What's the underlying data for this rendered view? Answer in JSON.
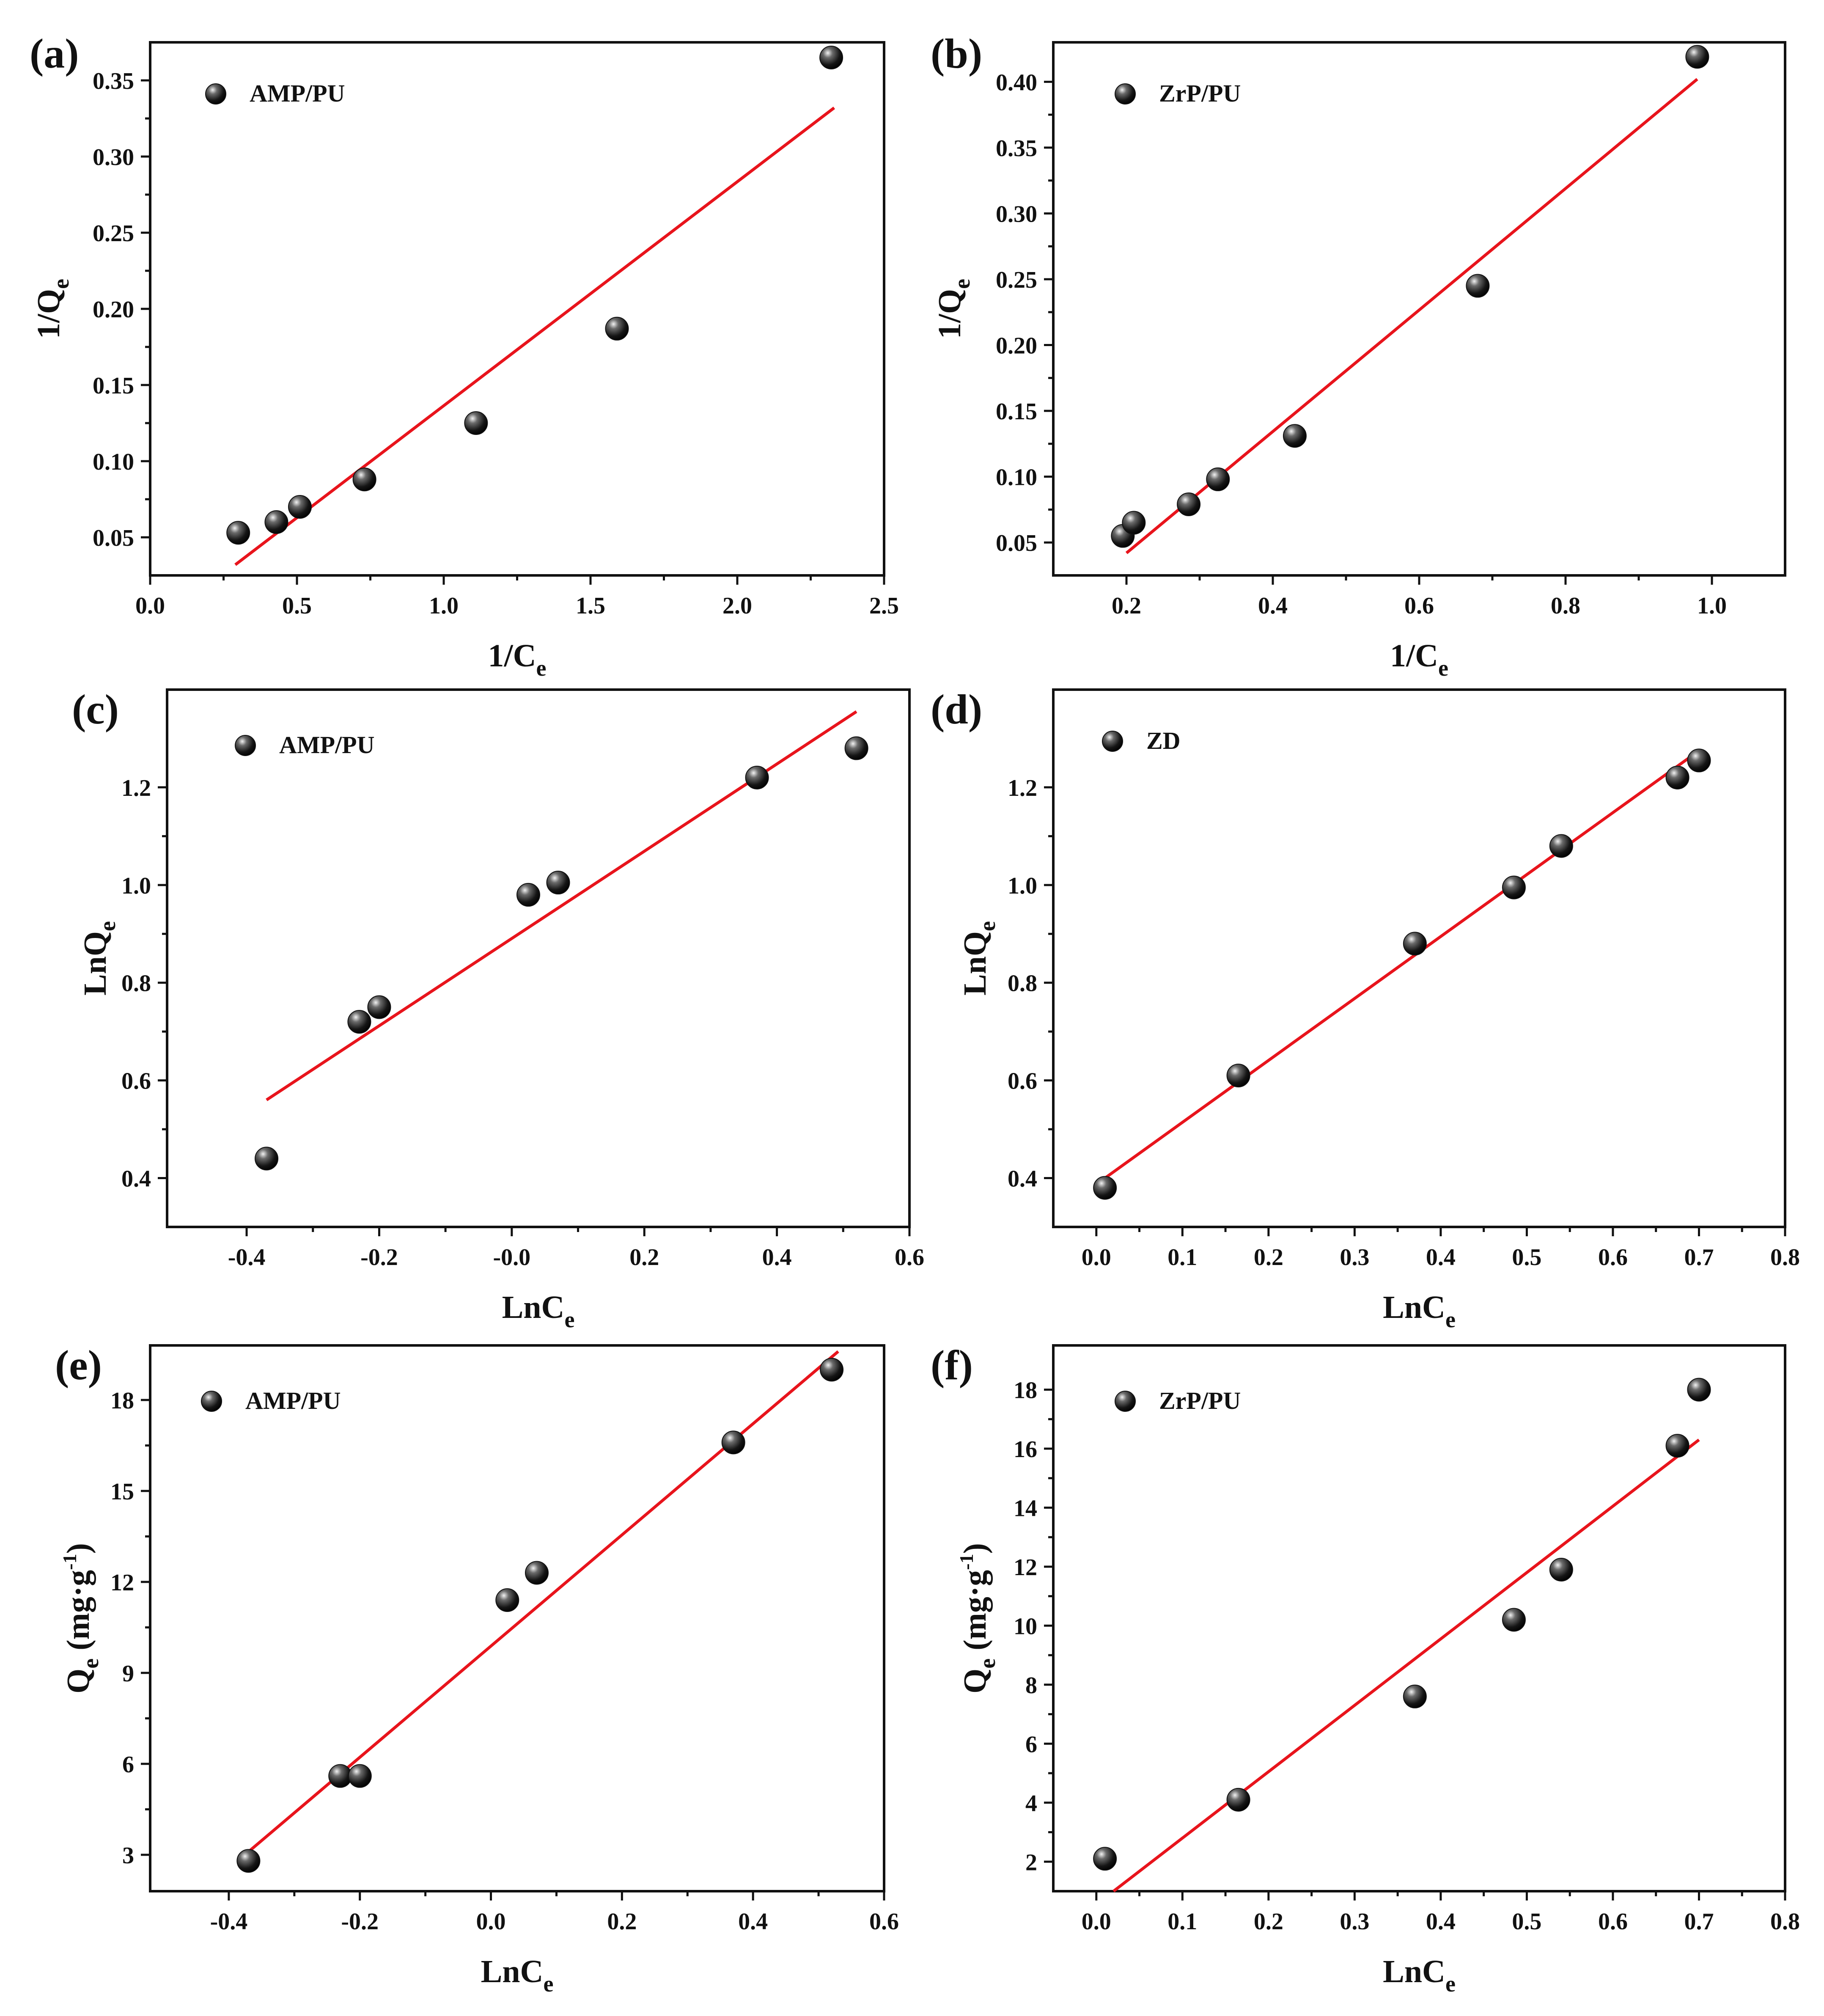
{
  "figure": {
    "colors": {
      "fit_line": "#e8141c",
      "marker_dark": "#111111",
      "marker_light": "#f2f2f2",
      "axis": "#111111"
    }
  },
  "chart_data": [
    {
      "id": "a",
      "type": "scatter",
      "panel_label": "(a)",
      "legend": "AMP/PU",
      "legend_position": "top-left",
      "xlabel": "1/C",
      "xlabel_sub": "e",
      "xlabel_sup": "",
      "ylabel": "1/Q",
      "ylabel_sub": "e",
      "ylabel_sup": "",
      "ylabel_suffix": "",
      "xlim": [
        0.0,
        2.5
      ],
      "ylim": [
        0.025,
        0.375
      ],
      "xticks": [
        0.0,
        0.5,
        1.0,
        1.5,
        2.0,
        2.5
      ],
      "xtick_labels": [
        "0.0",
        "0.5",
        "1.0",
        "1.5",
        "2.0",
        "2.5"
      ],
      "yticks": [
        0.05,
        0.1,
        0.15,
        0.2,
        0.25,
        0.3,
        0.35
      ],
      "ytick_labels": [
        "0.05",
        "0.10",
        "0.15",
        "0.20",
        "0.25",
        "0.30",
        "0.35"
      ],
      "x": [
        0.3,
        0.43,
        0.51,
        0.73,
        1.11,
        1.59,
        2.32
      ],
      "y": [
        0.053,
        0.06,
        0.07,
        0.088,
        0.125,
        0.187,
        0.365
      ],
      "fit": {
        "x": [
          0.29,
          2.33
        ],
        "y": [
          0.032,
          0.332
        ]
      }
    },
    {
      "id": "b",
      "type": "scatter",
      "panel_label": "(b)",
      "legend": "ZrP/PU",
      "legend_position": "top-left",
      "xlabel": "1/C",
      "xlabel_sub": "e",
      "xlabel_sup": "",
      "ylabel": "1/Q",
      "ylabel_sub": "e",
      "ylabel_sup": "",
      "ylabel_suffix": "",
      "xlim": [
        0.1,
        1.1
      ],
      "ylim": [
        0.025,
        0.43
      ],
      "xticks": [
        0.2,
        0.4,
        0.6,
        0.8,
        1.0
      ],
      "xtick_labels": [
        "0.2",
        "0.4",
        "0.6",
        "0.8",
        "1.0"
      ],
      "yticks": [
        0.05,
        0.1,
        0.15,
        0.2,
        0.25,
        0.3,
        0.35,
        0.4
      ],
      "ytick_labels": [
        "0.05",
        "0.10",
        "0.15",
        "0.20",
        "0.25",
        "0.30",
        "0.35",
        "0.40"
      ],
      "x": [
        0.195,
        0.21,
        0.285,
        0.325,
        0.43,
        0.68,
        0.98
      ],
      "y": [
        0.055,
        0.065,
        0.079,
        0.098,
        0.131,
        0.245,
        0.419
      ],
      "fit": {
        "x": [
          0.2,
          0.98
        ],
        "y": [
          0.042,
          0.402
        ]
      }
    },
    {
      "id": "c",
      "type": "scatter",
      "panel_label": "(c)",
      "legend": "AMP/PU",
      "legend_position": "top-left",
      "xlabel": "LnC",
      "xlabel_sub": "e",
      "xlabel_sup": "",
      "ylabel": "LnQ",
      "ylabel_sub": "e",
      "ylabel_sup": "",
      "ylabel_suffix": "",
      "xlim": [
        -0.52,
        0.6
      ],
      "ylim": [
        0.3,
        1.4
      ],
      "xticks": [
        -0.4,
        -0.2,
        0.0,
        0.2,
        0.4,
        0.6
      ],
      "xtick_labels": [
        "-0.4",
        "-0.2",
        "-0.0",
        "0.2",
        "0.4",
        "0.6"
      ],
      "yticks": [
        0.4,
        0.6,
        0.8,
        1.0,
        1.2
      ],
      "ytick_labels": [
        "0.4",
        "0.6",
        "0.8",
        "1.0",
        "1.2"
      ],
      "x": [
        -0.37,
        -0.23,
        -0.2,
        0.025,
        0.07,
        0.37,
        0.52
      ],
      "y": [
        0.44,
        0.72,
        0.75,
        0.98,
        1.005,
        1.22,
        1.28
      ],
      "fit": {
        "x": [
          -0.37,
          0.52
        ],
        "y": [
          0.56,
          1.355
        ]
      }
    },
    {
      "id": "d",
      "type": "scatter",
      "panel_label": "(d)",
      "legend": "ZD",
      "legend_position": "top-left",
      "xlabel": "LnC",
      "xlabel_sub": "e",
      "xlabel_sup": "",
      "ylabel": "LnQ",
      "ylabel_sub": "e",
      "ylabel_sup": "",
      "ylabel_suffix": "",
      "xlim": [
        -0.05,
        0.8
      ],
      "ylim": [
        0.3,
        1.4
      ],
      "xticks": [
        0.0,
        0.1,
        0.2,
        0.3,
        0.4,
        0.5,
        0.6,
        0.7,
        0.8
      ],
      "xtick_labels": [
        "0.0",
        "0.1",
        "0.2",
        "0.3",
        "0.4",
        "0.5",
        "0.6",
        "0.7",
        "0.8"
      ],
      "yticks": [
        0.4,
        0.6,
        0.8,
        1.0,
        1.2
      ],
      "ytick_labels": [
        "0.4",
        "0.6",
        "0.8",
        "1.0",
        "1.2"
      ],
      "x": [
        0.01,
        0.165,
        0.37,
        0.485,
        0.54,
        0.675,
        0.7
      ],
      "y": [
        0.38,
        0.61,
        0.88,
        0.995,
        1.08,
        1.22,
        1.255
      ],
      "fit": {
        "x": [
          0.01,
          0.7
        ],
        "y": [
          0.4,
          1.275
        ]
      }
    },
    {
      "id": "e",
      "type": "scatter",
      "panel_label": "(e)",
      "legend": "AMP/PU",
      "legend_position": "top-left",
      "xlabel": "LnC",
      "xlabel_sub": "e",
      "xlabel_sup": "",
      "ylabel": "Q",
      "ylabel_sub": "e",
      "ylabel_sup": "-1",
      "ylabel_suffix": " (mg·g",
      "ylabel_close": ")",
      "xlim": [
        -0.52,
        0.6
      ],
      "ylim": [
        1.8,
        19.8
      ],
      "xticks": [
        -0.4,
        -0.2,
        0.0,
        0.2,
        0.4,
        0.6
      ],
      "xtick_labels": [
        "-0.4",
        "-0.2",
        "0.0",
        "0.2",
        "0.4",
        "0.6"
      ],
      "yticks": [
        3,
        6,
        9,
        12,
        15,
        18
      ],
      "ytick_labels": [
        "3",
        "6",
        "9",
        "12",
        "15",
        "18"
      ],
      "x": [
        -0.37,
        -0.23,
        -0.2,
        0.025,
        0.07,
        0.37,
        0.52
      ],
      "y": [
        2.8,
        5.6,
        5.6,
        11.4,
        12.3,
        16.6,
        19.0
      ],
      "fit": {
        "x": [
          -0.37,
          0.53
        ],
        "y": [
          3.1,
          19.6
        ]
      }
    },
    {
      "id": "f",
      "type": "scatter",
      "panel_label": "(f)",
      "legend": "ZrP/PU",
      "legend_position": "top-left",
      "xlabel": "LnC",
      "xlabel_sub": "e",
      "xlabel_sup": "",
      "ylabel": "Q",
      "ylabel_sub": "e",
      "ylabel_sup": "-1",
      "ylabel_suffix": " (mg·g",
      "ylabel_close": ")",
      "xlim": [
        -0.05,
        0.8
      ],
      "ylim": [
        1.0,
        19.5
      ],
      "xticks": [
        0.0,
        0.1,
        0.2,
        0.3,
        0.4,
        0.5,
        0.6,
        0.7,
        0.8
      ],
      "xtick_labels": [
        "0.0",
        "0.1",
        "0.2",
        "0.3",
        "0.4",
        "0.5",
        "0.6",
        "0.7",
        "0.8"
      ],
      "yticks": [
        2,
        4,
        6,
        8,
        10,
        12,
        14,
        16,
        18
      ],
      "ytick_labels": [
        "2",
        "4",
        "6",
        "8",
        "10",
        "12",
        "14",
        "16",
        "18"
      ],
      "x": [
        0.01,
        0.165,
        0.37,
        0.485,
        0.54,
        0.675,
        0.7
      ],
      "y": [
        2.1,
        4.1,
        7.6,
        10.2,
        11.9,
        16.1,
        18.0
      ],
      "fit": {
        "x": [
          0.02,
          0.7
        ],
        "y": [
          1.0,
          16.3
        ]
      }
    }
  ]
}
